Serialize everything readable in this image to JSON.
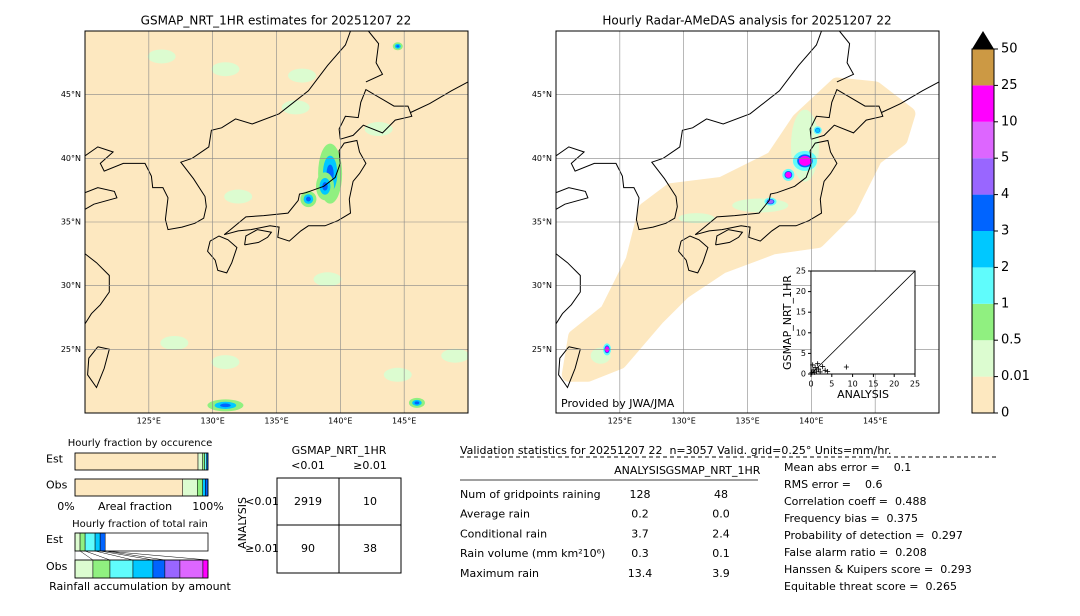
{
  "map_left": {
    "title": "GSMAP_NRT_1HR estimates for 20251207 22",
    "lat_labels": [
      "45°N",
      "40°N",
      "35°N",
      "30°N",
      "25°N"
    ],
    "lon_labels": [
      "125°E",
      "130°E",
      "135°E",
      "140°E",
      "145°E"
    ]
  },
  "map_right": {
    "title": "Hourly Radar-AMeDAS analysis for 20251207 22",
    "lat_labels": [
      "45°N",
      "40°N",
      "35°N",
      "30°N",
      "25°N"
    ],
    "lon_labels": [
      "125°E",
      "130°E",
      "135°E",
      "140°E",
      "145°E"
    ],
    "credit": "Provided by JWA/JMA"
  },
  "colorbar": {
    "levels": [
      0,
      0.01,
      0.5,
      1,
      2,
      3,
      4,
      5,
      10,
      25,
      50
    ],
    "colors": [
      "#fde8c0",
      "#dcfcd0",
      "#90f080",
      "#60fcfc",
      "#00c8ff",
      "#0064ff",
      "#9966ff",
      "#dd66ff",
      "#ff00ff",
      "#cc9944"
    ]
  },
  "chart_data": {
    "type": "scatter",
    "xlabel": "ANALYSIS",
    "ylabel": "GSMAP_NRT_1HR",
    "x": [
      0.2,
      0.5,
      0.8,
      1.0,
      1.3,
      1.8,
      2.2,
      2.8,
      3.4,
      4.0,
      8.5,
      0.4,
      1.6
    ],
    "values": [
      0.3,
      1.0,
      0.4,
      1.6,
      0.7,
      1.2,
      0.5,
      1.8,
      0.9,
      0.6,
      1.7,
      2.2,
      2.5
    ],
    "xlim": [
      0,
      25
    ],
    "ylim": [
      0,
      25
    ],
    "xticks": [
      0,
      5,
      10,
      15,
      20,
      25
    ],
    "yticks": [
      0,
      5,
      10,
      15,
      20,
      25
    ]
  },
  "occurrence": {
    "title": "Hourly fraction by occurence",
    "rows": [
      "Est",
      "Obs"
    ],
    "axis_left": "0%",
    "axis_label": "Areal fraction",
    "axis_right": "100%",
    "est": [
      92.5,
      3.5,
      1.5,
      1.5,
      1
    ],
    "obs": [
      81,
      11,
      4,
      2,
      2
    ],
    "est_colors": [
      "#fde8c0",
      "#dcfcd0",
      "#90f080",
      "#60fcfc",
      "#0064ff"
    ],
    "obs_colors": [
      "#fde8c0",
      "#dcfcd0",
      "#90f080",
      "#00c8ff",
      "#0064ff"
    ]
  },
  "total_rain": {
    "title": "Hourly fraction of total rain",
    "rows": [
      "Est",
      "Obs"
    ],
    "xlabel": "Rainfall accumulation by amount",
    "est": [
      3.8,
      3.8,
      7.5,
      3.8,
      3.8
    ],
    "obs": [
      13.5,
      12.8,
      17.3,
      15,
      9,
      11.3,
      17.3,
      3.8
    ],
    "est_colors": [
      "#dcfcd0",
      "#90f080",
      "#60fcfc",
      "#00c8ff",
      "#0064ff"
    ],
    "obs_colors": [
      "#dcfcd0",
      "#90f080",
      "#60fcfc",
      "#00c8ff",
      "#0064ff",
      "#9966ff",
      "#dd66ff",
      "#ff00ff"
    ]
  },
  "contingency": {
    "title": "GSMAP_NRT_1HR",
    "col_headers": [
      "<0.01",
      "≥0.01"
    ],
    "row_axis": "ANALYSIS",
    "row_headers": [
      "<0.01",
      "≥0.01"
    ],
    "cells": [
      [
        "2919",
        "10"
      ],
      [
        "90",
        "38"
      ]
    ]
  },
  "validation": {
    "header": "Validation statistics for 20251207 22  n=3057 Valid. grid=0.25° Units=mm/hr.",
    "columns": [
      "ANALYSIS",
      "GSMAP_NRT_1HR"
    ],
    "rows": [
      {
        "label": "Num of gridpoints raining",
        "values": [
          "128",
          "48"
        ]
      },
      {
        "label": "Average rain",
        "values": [
          "0.2",
          "0.0"
        ]
      },
      {
        "label": "Conditional rain",
        "values": [
          "3.7",
          "2.4"
        ]
      },
      {
        "label": "Rain volume (mm km²10⁶)",
        "values": [
          "0.3",
          "0.1"
        ]
      },
      {
        "label": "Maximum rain",
        "values": [
          "13.4",
          "3.9"
        ]
      }
    ],
    "scores": [
      "Mean abs error =    0.1",
      "RMS error =    0.6",
      "Correlation coeff =  0.488",
      "Frequency bias =  0.375",
      "Probability of detection =  0.297",
      "False alarm ratio =  0.208",
      "Hanssen & Kuipers score =  0.293",
      "Equitable threat score =  0.265"
    ]
  }
}
